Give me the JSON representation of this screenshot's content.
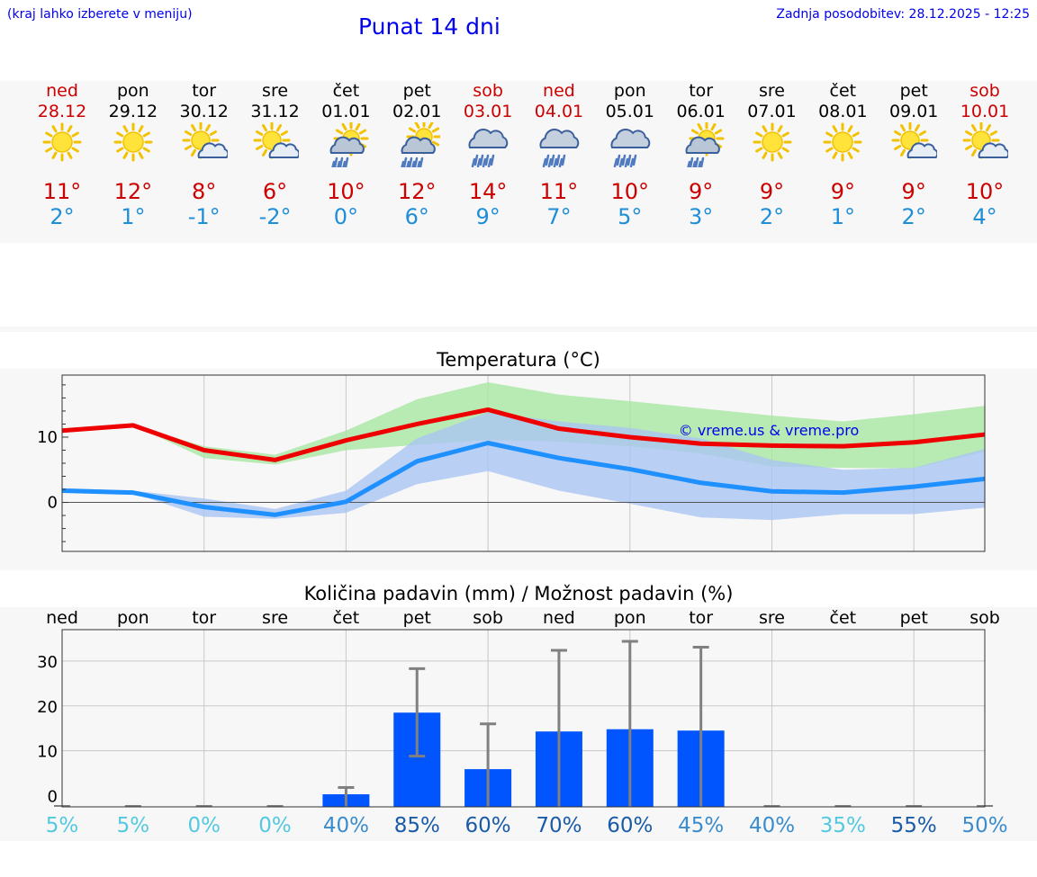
{
  "header": {
    "hint": "(kraj lahko izberete v meniju)",
    "title": "Punat 14 dni",
    "updated": "Zadnja posodobitev: 28.12.2025 - 12:25"
  },
  "colors": {
    "max": "#ee0000",
    "min": "#1e90ff",
    "max_band": "#a8e6a1",
    "min_band": "#aac4f3",
    "bar": "#0055ff",
    "weekend": "#cc0000"
  },
  "days": [
    {
      "name": "ned",
      "date": "28.12",
      "weekend": true,
      "icon": "sunny-icon",
      "tmax": "11°",
      "tmin": "2°",
      "pct": "5%"
    },
    {
      "name": "pon",
      "date": "29.12",
      "weekend": false,
      "icon": "sunny-icon",
      "tmax": "12°",
      "tmin": "1°",
      "pct": "5%"
    },
    {
      "name": "tor",
      "date": "30.12",
      "weekend": false,
      "icon": "sun-cloud-icon",
      "tmax": "8°",
      "tmin": "-1°",
      "pct": "0%"
    },
    {
      "name": "sre",
      "date": "31.12",
      "weekend": false,
      "icon": "sun-cloud-icon",
      "tmax": "6°",
      "tmin": "-2°",
      "pct": "0%"
    },
    {
      "name": "čet",
      "date": "01.01",
      "weekend": false,
      "icon": "sun-cloud-rain-icon",
      "tmax": "10°",
      "tmin": "0°",
      "pct": "40%"
    },
    {
      "name": "pet",
      "date": "02.01",
      "weekend": false,
      "icon": "sun-cloud-heavy-rain-icon",
      "tmax": "12°",
      "tmin": "6°",
      "pct": "85%"
    },
    {
      "name": "sob",
      "date": "03.01",
      "weekend": true,
      "icon": "cloud-rain-icon",
      "tmax": "14°",
      "tmin": "9°",
      "pct": "60%"
    },
    {
      "name": "ned",
      "date": "04.01",
      "weekend": true,
      "icon": "cloud-rain-icon",
      "tmax": "11°",
      "tmin": "7°",
      "pct": "70%"
    },
    {
      "name": "pon",
      "date": "05.01",
      "weekend": false,
      "icon": "cloud-rain-icon",
      "tmax": "10°",
      "tmin": "5°",
      "pct": "60%"
    },
    {
      "name": "tor",
      "date": "06.01",
      "weekend": false,
      "icon": "sun-cloud-rain-icon",
      "tmax": "9°",
      "tmin": "3°",
      "pct": "45%"
    },
    {
      "name": "sre",
      "date": "07.01",
      "weekend": false,
      "icon": "sunny-icon",
      "tmax": "9°",
      "tmin": "2°",
      "pct": "40%"
    },
    {
      "name": "čet",
      "date": "08.01",
      "weekend": false,
      "icon": "sunny-icon",
      "tmax": "9°",
      "tmin": "1°",
      "pct": "35%"
    },
    {
      "name": "pet",
      "date": "09.01",
      "weekend": false,
      "icon": "sun-cloud-icon",
      "tmax": "9°",
      "tmin": "2°",
      "pct": "55%"
    },
    {
      "name": "sob",
      "date": "10.01",
      "weekend": true,
      "icon": "sun-cloud-icon",
      "tmax": "10°",
      "tmin": "4°",
      "pct": "50%"
    }
  ],
  "chart_data": [
    {
      "type": "line",
      "title": "Temperatura (°C)",
      "watermark": "© vreme.us & vreme.pro",
      "ylim": [
        -7.5,
        19.5
      ],
      "yticks": [
        0,
        10
      ],
      "xlabel": "",
      "ylabel": "",
      "grid": true,
      "series": [
        {
          "name": "max",
          "values": [
            11,
            11.8,
            8,
            6.5,
            9.5,
            12,
            14.2,
            11.3,
            10,
            9,
            8.7,
            8.6,
            9.2,
            10.4
          ],
          "band_low": [
            11,
            11.8,
            6.8,
            5.8,
            8,
            8.8,
            9.6,
            9.3,
            8.6,
            7.5,
            5.5,
            5.3,
            5.2,
            7.8
          ],
          "band_high": [
            11,
            11.8,
            8.6,
            7.3,
            11,
            15.8,
            18.4,
            16.5,
            15.5,
            14.4,
            13.3,
            12.4,
            13.5,
            14.8
          ]
        },
        {
          "name": "min",
          "values": [
            1.8,
            1.5,
            -0.7,
            -1.9,
            0.1,
            6.3,
            9.1,
            6.8,
            5.1,
            3,
            1.7,
            1.5,
            2.4,
            3.6
          ],
          "band_low": [
            1.8,
            1.4,
            -2.2,
            -2.5,
            -1.6,
            2.8,
            4.8,
            1.8,
            -0.2,
            -2.3,
            -2.7,
            -1.8,
            -1.8,
            -0.8
          ],
          "band_high": [
            2.2,
            1.8,
            0.6,
            -1,
            1.8,
            9.8,
            13.8,
            12.4,
            11.4,
            9.8,
            6.5,
            5,
            5.3,
            8.2
          ]
        }
      ]
    },
    {
      "type": "bar",
      "title": "Količina padavin (mm) / Možnost padavin (%)",
      "categories": [
        "ned",
        "pon",
        "tor",
        "sre",
        "čet",
        "pet",
        "sob",
        "ned",
        "pon",
        "tor",
        "sre",
        "čet",
        "pet",
        "sob"
      ],
      "values": [
        0,
        0,
        0,
        0,
        0.3,
        18.5,
        5.9,
        14.3,
        14.8,
        14.5,
        0,
        0,
        0,
        0
      ],
      "err_low": [
        0,
        0,
        0,
        0,
        0,
        8.8,
        0,
        0,
        0,
        0,
        0,
        0,
        0,
        0
      ],
      "err_high": [
        0,
        0,
        0,
        0,
        1.8,
        28.3,
        16,
        32.4,
        34.4,
        33.1,
        0,
        0,
        0,
        0
      ],
      "probability": [
        "5%",
        "5%",
        "0%",
        "0%",
        "40%",
        "85%",
        "60%",
        "70%",
        "60%",
        "45%",
        "40%",
        "35%",
        "55%",
        "50%"
      ],
      "ylim": [
        -2.5,
        37
      ],
      "yticks": [
        0,
        10,
        20,
        30
      ]
    }
  ]
}
